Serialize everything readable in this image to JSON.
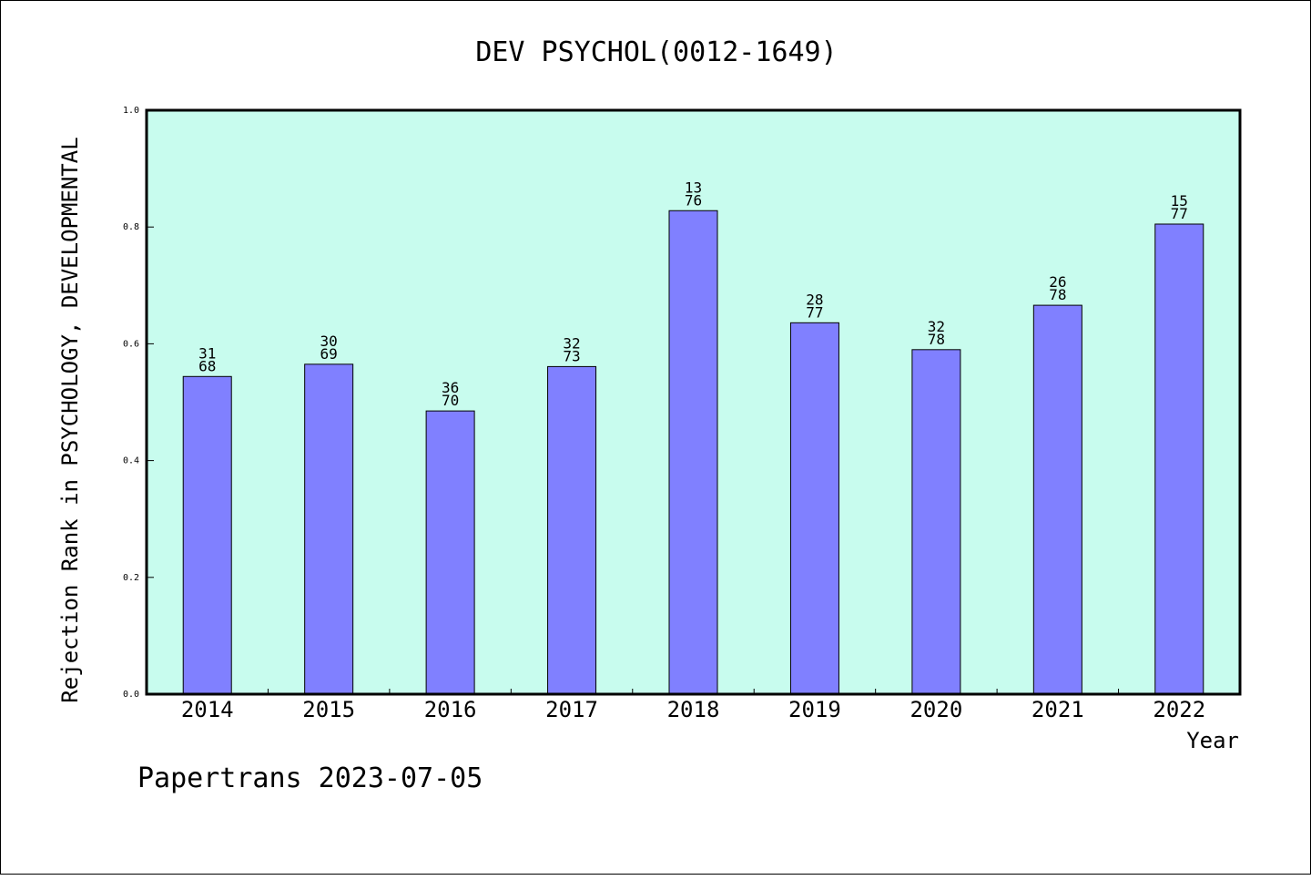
{
  "chart_data": {
    "type": "bar",
    "title": "DEV PSYCHOL(0012-1649)",
    "ylabel": "Rejection Rank in PSYCHOLOGY, DEVELOPMENTAL",
    "xlabel": "Year",
    "ylim": [
      0.0,
      1.0
    ],
    "yticks": [
      "0.0",
      "0.2",
      "0.4",
      "0.6",
      "0.8",
      "1.0"
    ],
    "categories": [
      "2014",
      "2015",
      "2016",
      "2017",
      "2018",
      "2019",
      "2020",
      "2021",
      "2022"
    ],
    "values": [
      0.544,
      0.565,
      0.485,
      0.561,
      0.828,
      0.636,
      0.59,
      0.666,
      0.805
    ],
    "labels_top": [
      "31",
      "30",
      "36",
      "32",
      "13",
      "28",
      "32",
      "26",
      "15"
    ],
    "labels_bottom": [
      "68",
      "69",
      "70",
      "73",
      "76",
      "77",
      "78",
      "78",
      "77"
    ],
    "grid": false,
    "colors": {
      "plot_bg": "#c8fcee",
      "bar": "#8080ff",
      "bar_edge": "#000000"
    }
  },
  "footer": "Papertrans 2023-07-05"
}
